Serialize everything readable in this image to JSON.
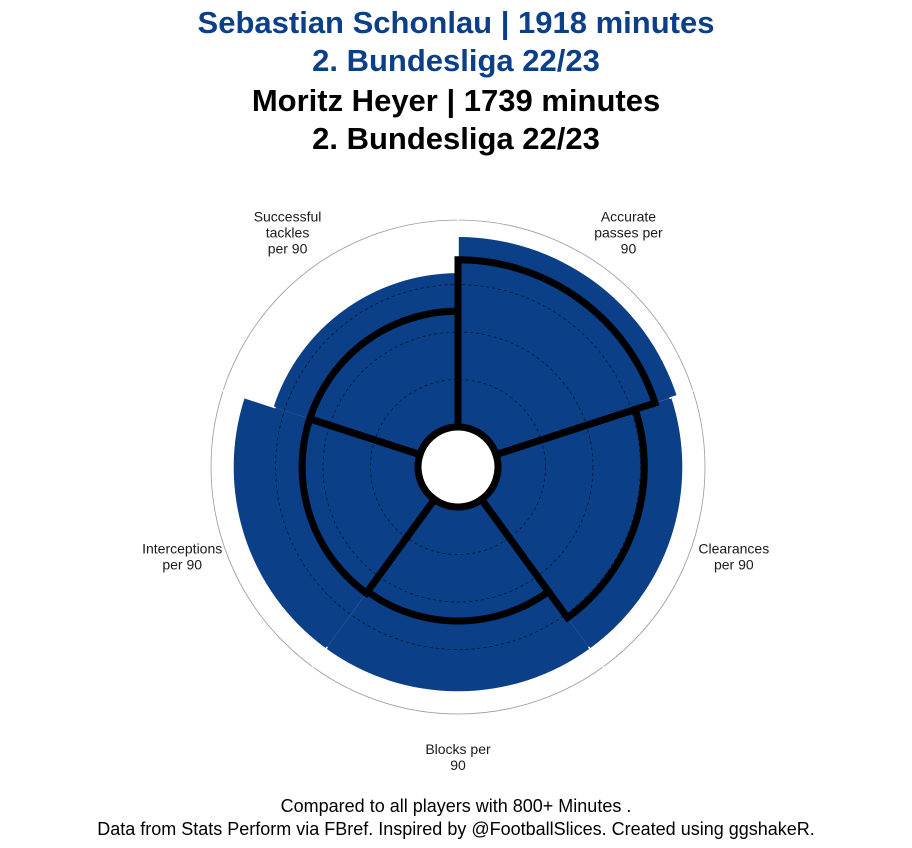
{
  "titles": {
    "player1_line1": "Sebastian Schonlau | 1918 minutes",
    "player1_line2": "2. Bundesliga 22/23",
    "player2_line1": "Moritz Heyer | 1739 minutes",
    "player2_line2": "2. Bundesliga 22/23"
  },
  "caption": {
    "line1": "Compared to all players with 800+ Minutes .",
    "line2": "Data from Stats Perform via FBref. Inspired by @FootballSlices. Created using ggshakeR."
  },
  "colors": {
    "player1_fill": "#0b3f88",
    "player2_outline": "#000000",
    "grid": "#000000",
    "outer_ring": "#999999"
  },
  "chart_data": {
    "type": "polar-bar",
    "categories": [
      [
        "Accurate",
        "passes per",
        "90"
      ],
      [
        "Clearances",
        "per 90"
      ],
      [
        "Blocks per",
        "90"
      ],
      [
        "Interceptions",
        "per 90"
      ],
      [
        "Successful",
        "tackles",
        "per 90"
      ]
    ],
    "series": [
      {
        "name": "Sebastian Schonlau",
        "values": [
          100,
          97,
          97,
          97,
          81
        ]
      },
      {
        "name": "Moritz Heyer",
        "values": [
          88,
          77,
          60,
          61,
          61
        ]
      }
    ],
    "ylim": [
      0,
      100
    ]
  }
}
